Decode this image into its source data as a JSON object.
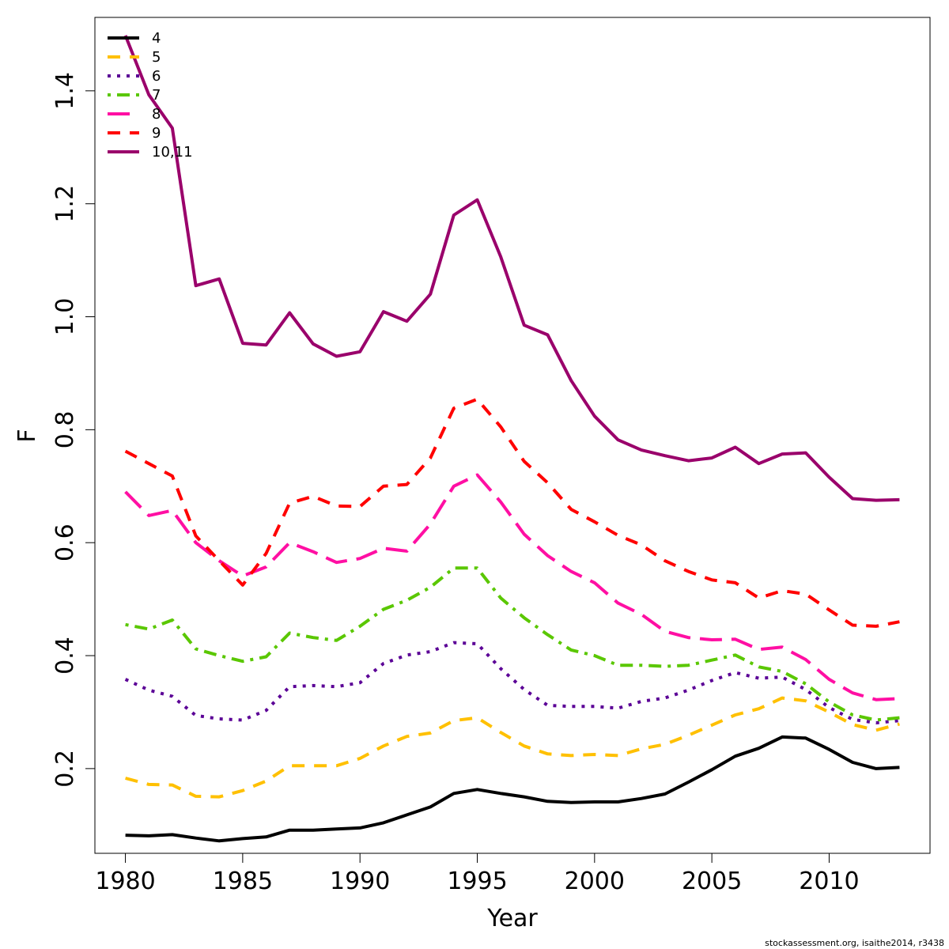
{
  "chart_data": {
    "type": "line",
    "title": "",
    "xlabel": "Year",
    "ylabel": "F",
    "xlim": [
      1978.7,
      2014.3
    ],
    "ylim": [
      0.05,
      1.53
    ],
    "x_ticks": [
      1980,
      1985,
      1990,
      1995,
      2000,
      2005,
      2010
    ],
    "y_ticks": [
      0.2,
      0.4,
      0.6,
      0.8,
      1.0,
      1.2,
      1.4
    ],
    "y_tick_labels": [
      "0.2",
      "0.4",
      "0.6",
      "0.8",
      "1.0",
      "1.2",
      "1.4"
    ],
    "grid": false,
    "legend_position": "top-left",
    "x": [
      1980,
      1981,
      1982,
      1983,
      1984,
      1985,
      1986,
      1987,
      1988,
      1989,
      1990,
      1991,
      1992,
      1993,
      1994,
      1995,
      1996,
      1997,
      1998,
      1999,
      2000,
      2001,
      2002,
      2003,
      2004,
      2005,
      2006,
      2007,
      2008,
      2009,
      2010,
      2011,
      2012,
      2013
    ],
    "series": [
      {
        "name": "4",
        "color": "#000000",
        "dash": "solid",
        "values": [
          0.082,
          0.081,
          0.083,
          0.077,
          0.072,
          0.076,
          0.079,
          0.091,
          0.091,
          0.093,
          0.095,
          0.104,
          0.118,
          0.132,
          0.156,
          0.163,
          0.156,
          0.15,
          0.142,
          0.14,
          0.141,
          0.141,
          0.147,
          0.155,
          0.176,
          0.198,
          0.222,
          0.236,
          0.256,
          0.254,
          0.234,
          0.211,
          0.2,
          0.202
        ]
      },
      {
        "name": "5",
        "color": "#FFC000",
        "dash": "dashed",
        "values": [
          0.183,
          0.172,
          0.171,
          0.151,
          0.15,
          0.161,
          0.178,
          0.205,
          0.205,
          0.205,
          0.218,
          0.24,
          0.257,
          0.263,
          0.285,
          0.29,
          0.264,
          0.24,
          0.226,
          0.223,
          0.225,
          0.223,
          0.235,
          0.243,
          0.259,
          0.277,
          0.295,
          0.306,
          0.325,
          0.32,
          0.3,
          0.278,
          0.268,
          0.279
        ]
      },
      {
        "name": "6",
        "color": "#5B0096",
        "dash": "dotted",
        "values": [
          0.358,
          0.339,
          0.328,
          0.294,
          0.288,
          0.286,
          0.303,
          0.345,
          0.347,
          0.345,
          0.352,
          0.386,
          0.401,
          0.407,
          0.423,
          0.421,
          0.377,
          0.34,
          0.312,
          0.31,
          0.31,
          0.307,
          0.319,
          0.325,
          0.339,
          0.356,
          0.37,
          0.36,
          0.362,
          0.34,
          0.308,
          0.287,
          0.281,
          0.285
        ]
      },
      {
        "name": "7",
        "color": "#5AC700",
        "dash": "dotdash",
        "values": [
          0.455,
          0.447,
          0.463,
          0.412,
          0.4,
          0.39,
          0.398,
          0.44,
          0.432,
          0.427,
          0.452,
          0.482,
          0.498,
          0.521,
          0.555,
          0.555,
          0.502,
          0.467,
          0.437,
          0.41,
          0.4,
          0.383,
          0.383,
          0.381,
          0.383,
          0.392,
          0.401,
          0.38,
          0.372,
          0.35,
          0.318,
          0.295,
          0.286,
          0.29
        ]
      },
      {
        "name": "8",
        "color": "#FF0FA3",
        "dash": "longdash",
        "values": [
          0.69,
          0.648,
          0.657,
          0.6,
          0.568,
          0.541,
          0.557,
          0.6,
          0.584,
          0.565,
          0.572,
          0.59,
          0.585,
          0.633,
          0.7,
          0.72,
          0.672,
          0.615,
          0.577,
          0.549,
          0.529,
          0.493,
          0.473,
          0.443,
          0.432,
          0.428,
          0.429,
          0.411,
          0.415,
          0.393,
          0.358,
          0.334,
          0.322,
          0.324
        ]
      },
      {
        "name": "9",
        "color": "#FF0000",
        "dash": "dashed",
        "values": [
          0.762,
          0.74,
          0.718,
          0.612,
          0.568,
          0.525,
          0.581,
          0.67,
          0.682,
          0.665,
          0.664,
          0.7,
          0.703,
          0.75,
          0.838,
          0.854,
          0.805,
          0.744,
          0.706,
          0.659,
          0.637,
          0.613,
          0.596,
          0.568,
          0.549,
          0.534,
          0.529,
          0.502,
          0.515,
          0.509,
          0.481,
          0.454,
          0.452,
          0.46
        ]
      },
      {
        "name": "10,11",
        "color": "#9A006B",
        "dash": "solid",
        "values": [
          1.498,
          1.393,
          1.334,
          1.055,
          1.067,
          0.953,
          0.95,
          1.007,
          0.952,
          0.93,
          0.938,
          1.009,
          0.992,
          1.04,
          1.18,
          1.207,
          1.106,
          0.985,
          0.968,
          0.887,
          0.824,
          0.782,
          0.764,
          0.754,
          0.745,
          0.75,
          0.769,
          0.74,
          0.757,
          0.759,
          0.716,
          0.678,
          0.675,
          0.676
        ]
      }
    ]
  },
  "footer": {
    "credit": "stockassessment.org, isaithe2014, r3438"
  }
}
